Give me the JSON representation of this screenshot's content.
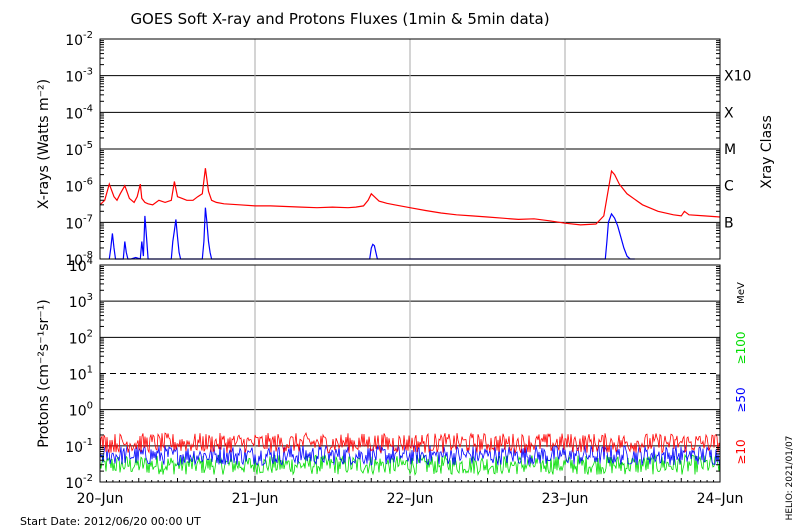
{
  "chart_data": [
    {
      "type": "line",
      "title": "GOES Soft X-ray and Protons Fluxes   (1min & 5min data)",
      "ylabel": "X-rays (Watts m⁻²)",
      "yscale": "log",
      "ylim": [
        1e-08,
        0.01
      ],
      "y_ticks": [
        {
          "exp": "-2",
          "value": 0.01
        },
        {
          "exp": "-3",
          "value": 0.001
        },
        {
          "exp": "-4",
          "value": 0.0001
        },
        {
          "exp": "-5",
          "value": 1e-05
        },
        {
          "exp": "-6",
          "value": 1e-06
        },
        {
          "exp": "-7",
          "value": 1e-07
        },
        {
          "exp": "-8",
          "value": 1e-08
        }
      ],
      "tick_base": "10",
      "right_axis_label": "Xray Class",
      "class_labels": [
        {
          "label": "X10",
          "value": 0.001
        },
        {
          "label": "X",
          "value": 0.0001
        },
        {
          "label": "M",
          "value": 1e-05
        },
        {
          "label": "C",
          "value": 1e-06
        },
        {
          "label": "B",
          "value": 1e-07
        }
      ],
      "series": [
        {
          "color": "#ff0000",
          "x": [
            0,
            0.03,
            0.06,
            0.09,
            0.11,
            0.13,
            0.16,
            0.19,
            0.22,
            0.24,
            0.26,
            0.27,
            0.29,
            0.31,
            0.34,
            0.38,
            0.42,
            0.46,
            0.48,
            0.5,
            0.53,
            0.56,
            0.6,
            0.63,
            0.66,
            0.68,
            0.7,
            0.72,
            0.75,
            0.8,
            0.9,
            1.0,
            1.1,
            1.2,
            1.3,
            1.4,
            1.5,
            1.6,
            1.65,
            1.7,
            1.73,
            1.75,
            1.77,
            1.8,
            1.85,
            1.9,
            2.0,
            2.1,
            2.2,
            2.3,
            2.4,
            2.5,
            2.6,
            2.7,
            2.8,
            2.9,
            3.0,
            3.1,
            3.2,
            3.25,
            3.28,
            3.3,
            3.32,
            3.35,
            3.4,
            3.5,
            3.6,
            3.7,
            3.75,
            3.77,
            3.8,
            3.9,
            4.0
          ],
          "y": [
            3e-07,
            4e-07,
            1.1e-06,
            5e-07,
            4e-07,
            6e-07,
            1e-06,
            4.5e-07,
            3.5e-07,
            5e-07,
            1.1e-06,
            4.5e-07,
            3.5e-07,
            3.2e-07,
            3e-07,
            4e-07,
            3.5e-07,
            4e-07,
            1.3e-06,
            5e-07,
            4.5e-07,
            4e-07,
            4e-07,
            5e-07,
            6e-07,
            3e-06,
            7e-07,
            4e-07,
            3.5e-07,
            3.2e-07,
            3e-07,
            2.8e-07,
            2.8e-07,
            2.7e-07,
            2.6e-07,
            2.5e-07,
            2.6e-07,
            2.5e-07,
            2.6e-07,
            2.8e-07,
            4e-07,
            6e-07,
            5e-07,
            3.8e-07,
            3.3e-07,
            3e-07,
            2.5e-07,
            2.1e-07,
            1.8e-07,
            1.6e-07,
            1.5e-07,
            1.4e-07,
            1.3e-07,
            1.2e-07,
            1.25e-07,
            1.1e-07,
            9.5e-08,
            8.5e-08,
            9e-08,
            1.5e-07,
            8e-07,
            2.5e-06,
            2e-06,
            1.1e-06,
            6e-07,
            3e-07,
            2e-07,
            1.6e-07,
            1.5e-07,
            2e-07,
            1.6e-07,
            1.5e-07,
            1.4e-07
          ]
        },
        {
          "color": "#0000ff",
          "x": [
            0.06,
            0.07,
            0.08,
            0.09,
            0.1,
            0.15,
            0.16,
            0.17,
            0.18,
            0.2,
            0.23,
            0.26,
            0.27,
            0.28,
            0.29,
            0.3,
            0.31,
            0.32,
            0.46,
            0.47,
            0.48,
            0.49,
            0.5,
            0.51,
            0.52,
            0.54,
            0.66,
            0.67,
            0.68,
            0.69,
            0.7,
            0.71,
            0.72,
            1.74,
            1.75,
            1.76,
            1.77,
            1.78,
            1.79,
            3.26,
            3.27,
            3.28,
            3.3,
            3.32,
            3.34,
            3.36,
            3.38,
            3.4,
            3.42,
            3.45
          ],
          "y": [
            1e-08,
            2e-08,
            5e-08,
            2e-08,
            1e-08,
            1e-08,
            3e-08,
            1.5e-08,
            1e-08,
            1e-08,
            1.1e-08,
            1e-08,
            3e-08,
            1.2e-08,
            1.5e-07,
            4e-08,
            1e-08,
            1e-08,
            1e-08,
            3e-08,
            6e-08,
            1.2e-07,
            4e-08,
            1.5e-08,
            1e-08,
            1e-08,
            1e-08,
            3e-08,
            2.5e-07,
            1e-07,
            3e-08,
            1.5e-08,
            1e-08,
            1e-08,
            2e-08,
            2.5e-08,
            2.3e-08,
            1.5e-08,
            1e-08,
            1e-08,
            3e-08,
            1e-07,
            1.7e-07,
            1.3e-07,
            8e-08,
            4e-08,
            2e-08,
            1.2e-08,
            1e-08,
            1e-08
          ]
        }
      ]
    },
    {
      "type": "line",
      "ylabel": "Protons (cm⁻²s⁻¹sr⁻¹)",
      "yscale": "log",
      "ylim": [
        0.01,
        10000
      ],
      "y_ticks": [
        {
          "exp": "4",
          "value": 10000
        },
        {
          "exp": "3",
          "value": 1000
        },
        {
          "exp": "2",
          "value": 100
        },
        {
          "exp": "1",
          "value": 10
        },
        {
          "exp": "0",
          "value": 1
        },
        {
          "exp": "-1",
          "value": 0.1
        },
        {
          "exp": "-2",
          "value": 0.01
        }
      ],
      "tick_base": "10",
      "threshold": 10,
      "unit_label": "MeV",
      "series": [
        {
          "name": "≥10",
          "color": "#ff0000",
          "level": 0.12
        },
        {
          "name": "≥50",
          "color": "#0000ff",
          "level": 0.055
        },
        {
          "name": "≥100",
          "color": "#00dd00",
          "level": 0.03
        }
      ]
    }
  ],
  "x_axis": {
    "range": [
      0,
      4
    ],
    "ticks": [
      {
        "label": "20–Jun",
        "value": 0
      },
      {
        "label": "21–Jun",
        "value": 1
      },
      {
        "label": "22–Jun",
        "value": 2
      },
      {
        "label": "23–Jun",
        "value": 3
      },
      {
        "label": "24–Jun",
        "value": 4
      }
    ]
  },
  "footer": {
    "start_date": "Start Date: 2012/06/20 00:00 UT",
    "credit": "HELIO: 2021/01/07"
  }
}
